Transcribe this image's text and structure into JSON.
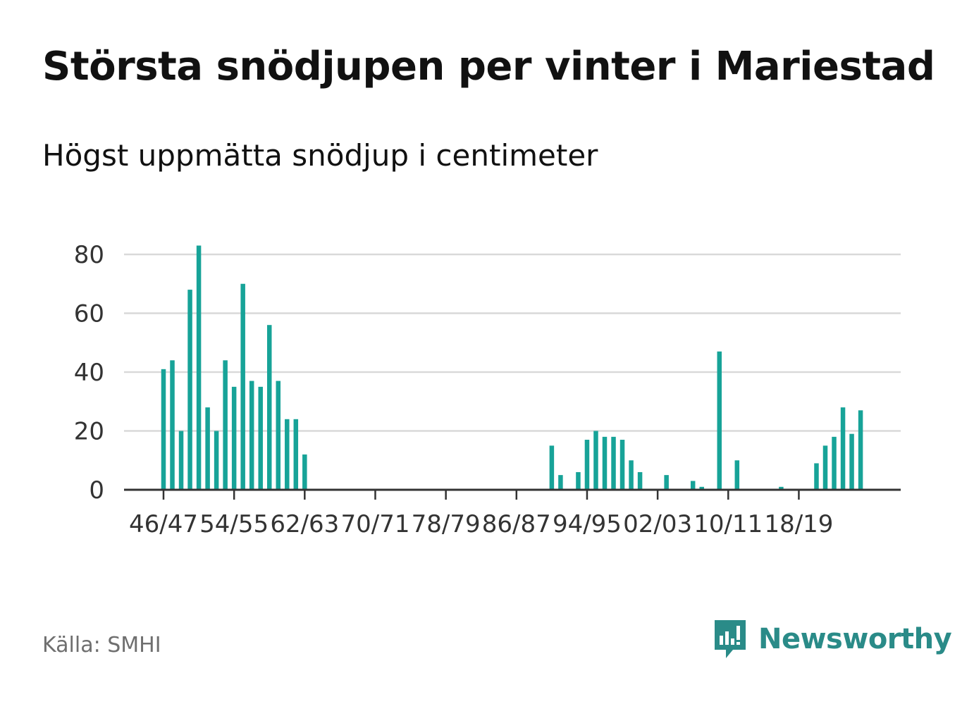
{
  "title": "Största snödjupen per vinter i Mariestad",
  "subtitle": "Högst uppmätta snödjup i centimeter",
  "source": "Källa: SMHI",
  "brand": {
    "name": "Newsworthy",
    "icon": "newsworthy-logo-icon"
  },
  "colors": {
    "bar": "#17a398",
    "grid": "#d9d9d9",
    "axis": "#333333",
    "tick_text": "#333333",
    "brand": "#2a8b88"
  },
  "chart_data": {
    "type": "bar",
    "title": "Största snödjupen per vinter i Mariestad",
    "subtitle": "Högst uppmätta snödjup i centimeter",
    "xlabel": "",
    "ylabel": "",
    "ylim": [
      0,
      80
    ],
    "yticks": [
      0,
      20,
      40,
      60,
      80
    ],
    "xtick_labels": [
      "46/47",
      "54/55",
      "62/63",
      "70/71",
      "78/79",
      "86/87",
      "94/95",
      "02/03",
      "10/11",
      "18/19"
    ],
    "grid": true,
    "categories": [
      "46/47",
      "47/48",
      "48/49",
      "49/50",
      "50/51",
      "51/52",
      "52/53",
      "53/54",
      "54/55",
      "55/56",
      "56/57",
      "57/58",
      "58/59",
      "59/60",
      "60/61",
      "61/62",
      "62/63",
      "63/64",
      "64/65",
      "65/66",
      "66/67",
      "67/68",
      "68/69",
      "69/70",
      "70/71",
      "71/72",
      "72/73",
      "73/74",
      "74/75",
      "75/76",
      "76/77",
      "77/78",
      "78/79",
      "79/80",
      "80/81",
      "81/82",
      "82/83",
      "83/84",
      "84/85",
      "85/86",
      "86/87",
      "87/88",
      "88/89",
      "89/90",
      "90/91",
      "91/92",
      "92/93",
      "93/94",
      "94/95",
      "95/96",
      "96/97",
      "97/98",
      "98/99",
      "99/00",
      "00/01",
      "01/02",
      "02/03",
      "03/04",
      "04/05",
      "05/06",
      "06/07",
      "07/08",
      "08/09",
      "09/10",
      "10/11",
      "11/12",
      "12/13",
      "13/14",
      "14/15",
      "15/16",
      "16/17",
      "17/18",
      "18/19",
      "19/20",
      "20/21",
      "21/22",
      "22/23",
      "23/24",
      "24/25",
      "25/26"
    ],
    "values": [
      41,
      44,
      20,
      68,
      83,
      28,
      20,
      44,
      35,
      70,
      37,
      35,
      56,
      37,
      24,
      24,
      12,
      0,
      0,
      0,
      0,
      0,
      0,
      0,
      0,
      0,
      0,
      0,
      0,
      0,
      0,
      0,
      0,
      0,
      0,
      0,
      0,
      0,
      0,
      0,
      0,
      0,
      0,
      0,
      15,
      5,
      0,
      6,
      17,
      20,
      18,
      18,
      17,
      10,
      6,
      0,
      0,
      5,
      0,
      0,
      3,
      1,
      0,
      47,
      0,
      10,
      0,
      0,
      0,
      0,
      1,
      0,
      0,
      0,
      9,
      15,
      18,
      28,
      19,
      27
    ]
  }
}
